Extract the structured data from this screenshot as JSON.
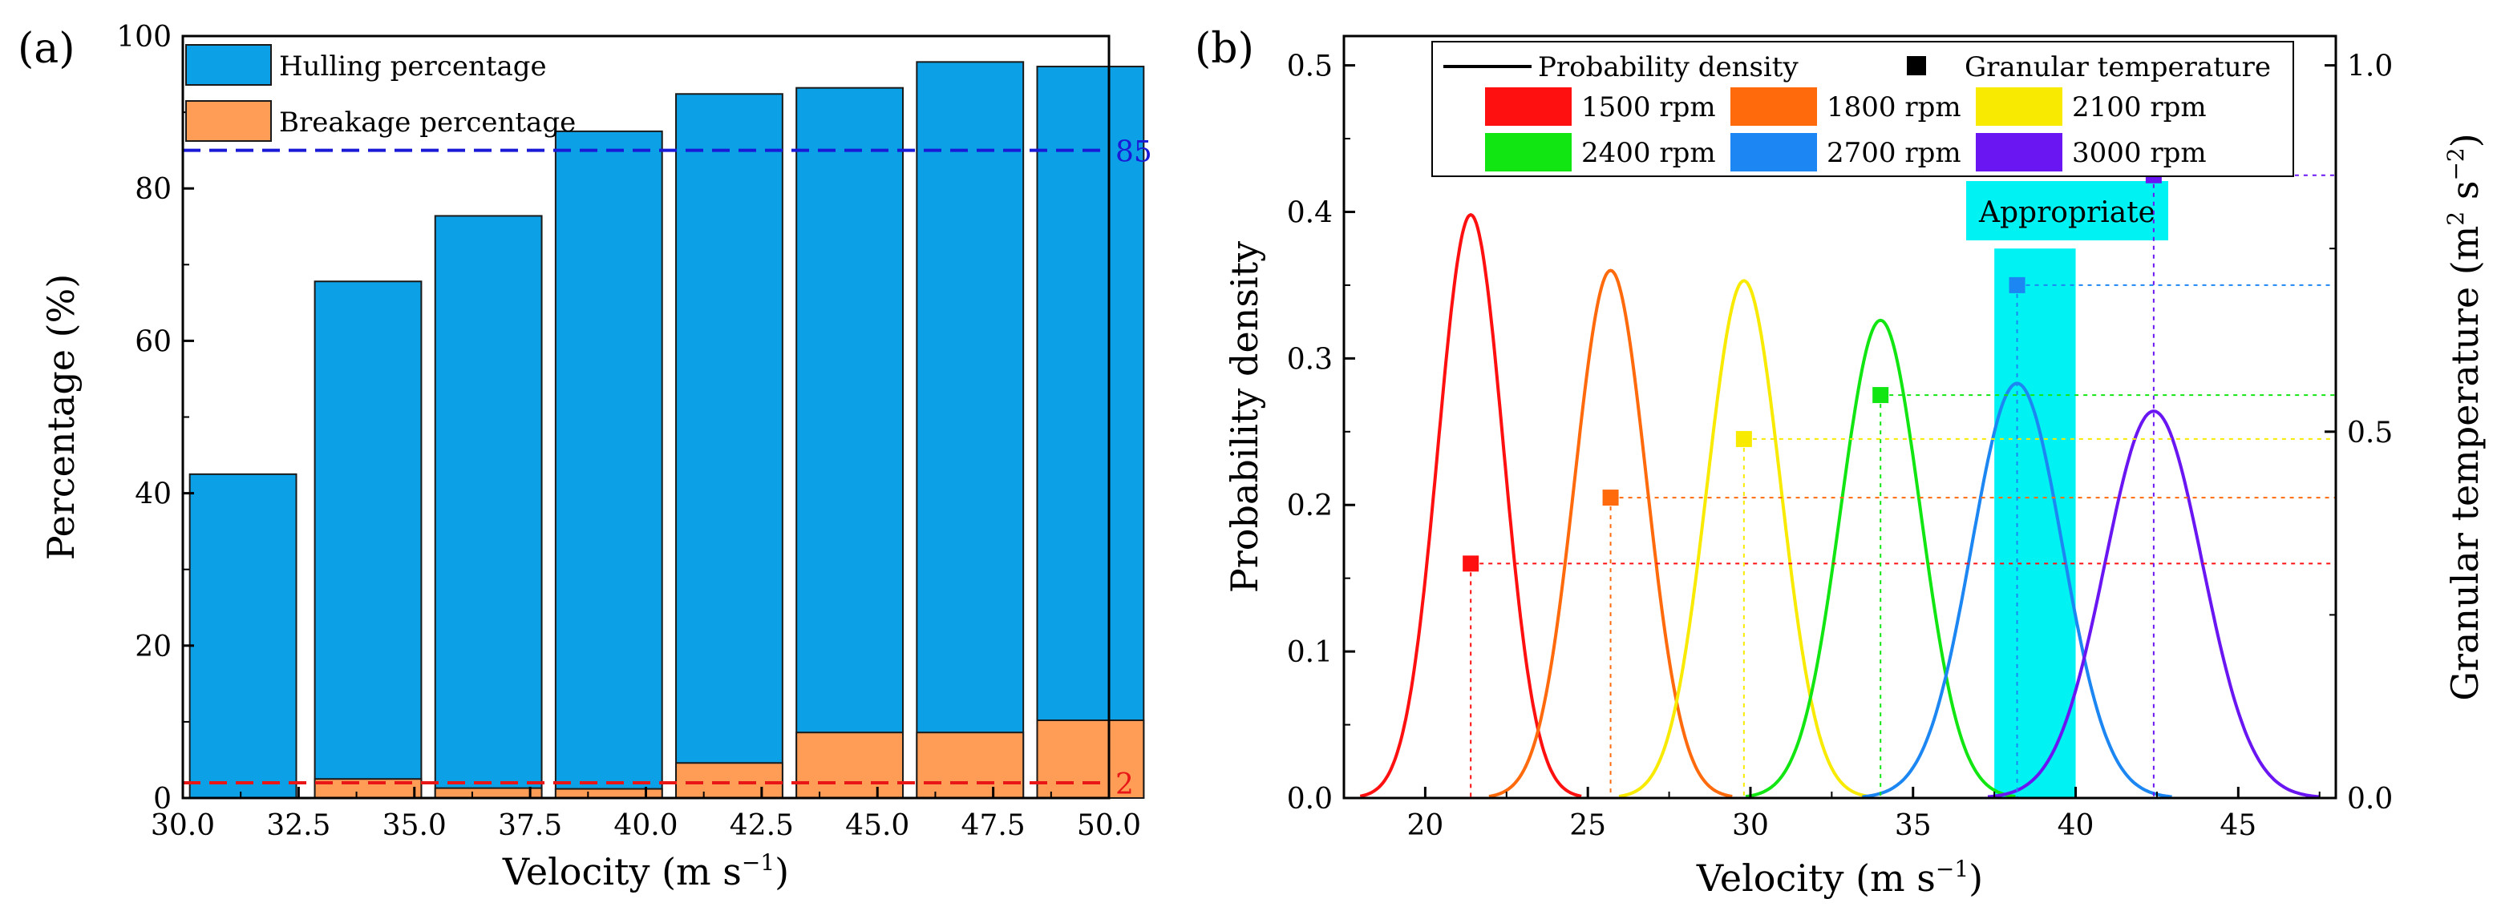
{
  "chart_data": [
    {
      "panel_label": "(a)",
      "type": "bar",
      "xlabel": "Velocity (m s",
      "xlabel_sup": "−1",
      "xlabel_end": ")",
      "ylabel": "Percentage (%)",
      "xlim": [
        30.0,
        50.0
      ],
      "ylim": [
        0,
        100
      ],
      "xticks": [
        "30.0",
        "32.5",
        "35.0",
        "37.5",
        "40.0",
        "42.5",
        "45.0",
        "47.5",
        "50.0"
      ],
      "yticks": [
        "0",
        "20",
        "40",
        "60",
        "80",
        "100"
      ],
      "bar_width": 2.3,
      "series": [
        {
          "name": "Hulling percentage",
          "color": "#0ca1e6",
          "x": [
            31.3,
            34.0,
            36.6,
            39.2,
            41.8,
            44.4,
            47.0,
            49.6
          ],
          "values": [
            42.5,
            67.8,
            76.4,
            87.5,
            92.4,
            93.2,
            96.6,
            96.0
          ]
        },
        {
          "name": "Breakage percentage",
          "color": "#ff9c56",
          "x": [
            31.3,
            34.0,
            36.6,
            39.2,
            41.8,
            44.4,
            47.0,
            49.6
          ],
          "values": [
            0.0,
            2.5,
            1.3,
            1.2,
            4.6,
            8.6,
            8.6,
            10.2
          ]
        }
      ],
      "reference_lines": [
        {
          "value": 85,
          "label": "85",
          "color": "#1a1ad6"
        },
        {
          "value": 2,
          "label": "2",
          "color": "#e81616"
        }
      ]
    },
    {
      "panel_label": "(b)",
      "type": "line",
      "xlabel": "Velocity (m s",
      "xlabel_sup": "−1",
      "xlabel_end": ")",
      "ylabel": "Probability density",
      "y2label": "Granular temperature (m",
      "y2label_sup1": "2",
      "y2label_mid": " s",
      "y2label_sup2": "−2",
      "y2label_end": ")",
      "xlim": [
        17.5,
        48.0
      ],
      "ylim": [
        0,
        0.52
      ],
      "y2lim": [
        0,
        1.04
      ],
      "xticks": [
        "20",
        "25",
        "30",
        "35",
        "40",
        "45"
      ],
      "xtick_values": [
        20,
        25,
        30,
        35,
        40,
        45
      ],
      "yticks": [
        "0.0",
        "0.1",
        "0.2",
        "0.3",
        "0.4",
        "0.5"
      ],
      "y2ticks": [
        "0.0",
        "0.5",
        "1.0"
      ],
      "legend_lines": {
        "line_label": "Probability density",
        "marker_label": "Granular temperature"
      },
      "series": [
        {
          "name": "1500 rpm",
          "color": "#ff1010",
          "mean": 21.4,
          "sd": 1.0,
          "peak": 0.398,
          "temperature": 0.32
        },
        {
          "name": "1800 rpm",
          "color": "#ff6a0d",
          "mean": 25.7,
          "sd": 1.1,
          "peak": 0.36,
          "temperature": 0.41
        },
        {
          "name": "2100 rpm",
          "color": "#f8ea00",
          "mean": 29.8,
          "sd": 1.13,
          "peak": 0.353,
          "temperature": 0.49
        },
        {
          "name": "2400 rpm",
          "color": "#12e612",
          "mean": 34.0,
          "sd": 1.22,
          "peak": 0.326,
          "temperature": 0.55
        },
        {
          "name": "2700 rpm",
          "color": "#1c86f2",
          "mean": 38.2,
          "sd": 1.4,
          "peak": 0.283,
          "temperature": 0.7
        },
        {
          "name": "3000 rpm",
          "color": "#6a16f2",
          "mean": 42.4,
          "sd": 1.5,
          "peak": 0.264,
          "temperature": 0.85
        }
      ],
      "highlight_band": {
        "x_range": [
          37.5,
          40.0
        ],
        "label": "Appropriate",
        "color": "#00f2f2"
      }
    }
  ]
}
